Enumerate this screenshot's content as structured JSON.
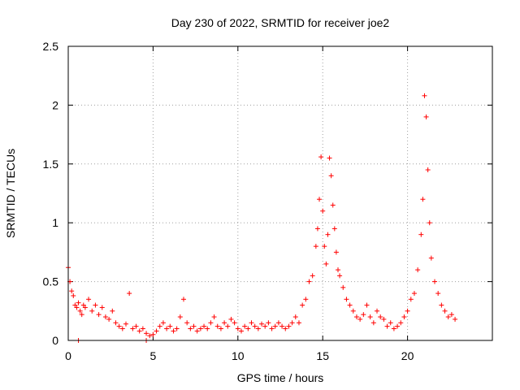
{
  "chart_data": {
    "type": "scatter",
    "title": "Day 230 of 2022, SRMTID for receiver joe2",
    "xlabel": "GPS time / hours",
    "ylabel": "SRMTID / TECUs",
    "xlim": [
      0,
      25
    ],
    "ylim": [
      0,
      2.5
    ],
    "xticks": [
      0,
      5,
      10,
      15,
      20
    ],
    "xtick_labels": [
      "0",
      "5",
      "10",
      "15",
      "20"
    ],
    "yticks": [
      0,
      0.5,
      1,
      1.5,
      2,
      2.5
    ],
    "ytick_labels": [
      "0",
      "0.5",
      "1",
      "1.5",
      "2",
      "2.5"
    ],
    "grid": true,
    "marker": "plus",
    "color": "#ff0000",
    "series": [
      {
        "name": "SRMTID",
        "x": [
          0.0,
          0.1,
          0.2,
          0.3,
          0.4,
          0.5,
          0.6,
          0.7,
          0.8,
          0.9,
          1.0,
          1.2,
          1.4,
          1.6,
          1.8,
          2.0,
          2.2,
          2.4,
          2.6,
          2.8,
          3.0,
          3.2,
          3.4,
          3.6,
          3.8,
          4.0,
          4.2,
          4.4,
          4.6,
          4.8,
          5.0,
          5.2,
          5.4,
          5.6,
          5.8,
          6.0,
          6.2,
          6.4,
          6.6,
          6.8,
          7.0,
          7.2,
          7.4,
          7.6,
          7.8,
          8.0,
          8.2,
          8.4,
          8.6,
          8.8,
          9.0,
          9.2,
          9.4,
          9.6,
          9.8,
          10.0,
          10.2,
          10.4,
          10.6,
          10.8,
          11.0,
          11.2,
          11.4,
          11.6,
          11.8,
          12.0,
          12.2,
          12.4,
          12.6,
          12.8,
          13.0,
          13.2,
          13.4,
          13.6,
          13.8,
          14.0,
          14.2,
          14.4,
          14.6,
          14.7,
          14.8,
          14.9,
          15.0,
          15.1,
          15.2,
          15.3,
          15.4,
          15.5,
          15.6,
          15.7,
          15.8,
          15.9,
          16.0,
          16.2,
          16.4,
          16.6,
          16.8,
          17.0,
          17.2,
          17.4,
          17.6,
          17.8,
          18.0,
          18.2,
          18.4,
          18.6,
          18.8,
          19.0,
          19.2,
          19.4,
          19.6,
          19.8,
          20.0,
          20.2,
          20.4,
          20.6,
          20.8,
          20.9,
          21.0,
          21.1,
          21.2,
          21.3,
          21.4,
          21.6,
          21.8,
          22.0,
          22.2,
          22.4,
          22.6,
          22.8,
          0.6,
          4.6
        ],
        "y": [
          0.62,
          0.5,
          0.42,
          0.38,
          0.3,
          0.28,
          0.32,
          0.25,
          0.22,
          0.3,
          0.28,
          0.35,
          0.25,
          0.3,
          0.22,
          0.28,
          0.2,
          0.18,
          0.25,
          0.15,
          0.12,
          0.1,
          0.14,
          0.4,
          0.1,
          0.12,
          0.08,
          0.1,
          0.06,
          0.04,
          0.05,
          0.08,
          0.12,
          0.15,
          0.1,
          0.12,
          0.08,
          0.1,
          0.2,
          0.35,
          0.15,
          0.1,
          0.12,
          0.08,
          0.1,
          0.12,
          0.1,
          0.15,
          0.2,
          0.12,
          0.1,
          0.15,
          0.12,
          0.18,
          0.15,
          0.1,
          0.08,
          0.12,
          0.1,
          0.15,
          0.12,
          0.1,
          0.14,
          0.12,
          0.15,
          0.1,
          0.12,
          0.15,
          0.12,
          0.1,
          0.12,
          0.15,
          0.2,
          0.15,
          0.3,
          0.35,
          0.5,
          0.55,
          0.8,
          0.95,
          1.2,
          1.56,
          1.1,
          0.8,
          0.65,
          0.9,
          1.55,
          1.4,
          1.15,
          0.95,
          0.75,
          0.6,
          0.55,
          0.45,
          0.35,
          0.3,
          0.25,
          0.2,
          0.18,
          0.22,
          0.3,
          0.2,
          0.15,
          0.25,
          0.2,
          0.18,
          0.12,
          0.15,
          0.1,
          0.12,
          0.15,
          0.2,
          0.25,
          0.35,
          0.4,
          0.6,
          0.9,
          1.2,
          2.08,
          1.9,
          1.45,
          1.0,
          0.7,
          0.5,
          0.4,
          0.3,
          0.25,
          0.2,
          0.22,
          0.18,
          0.0,
          0.0
        ]
      }
    ]
  }
}
